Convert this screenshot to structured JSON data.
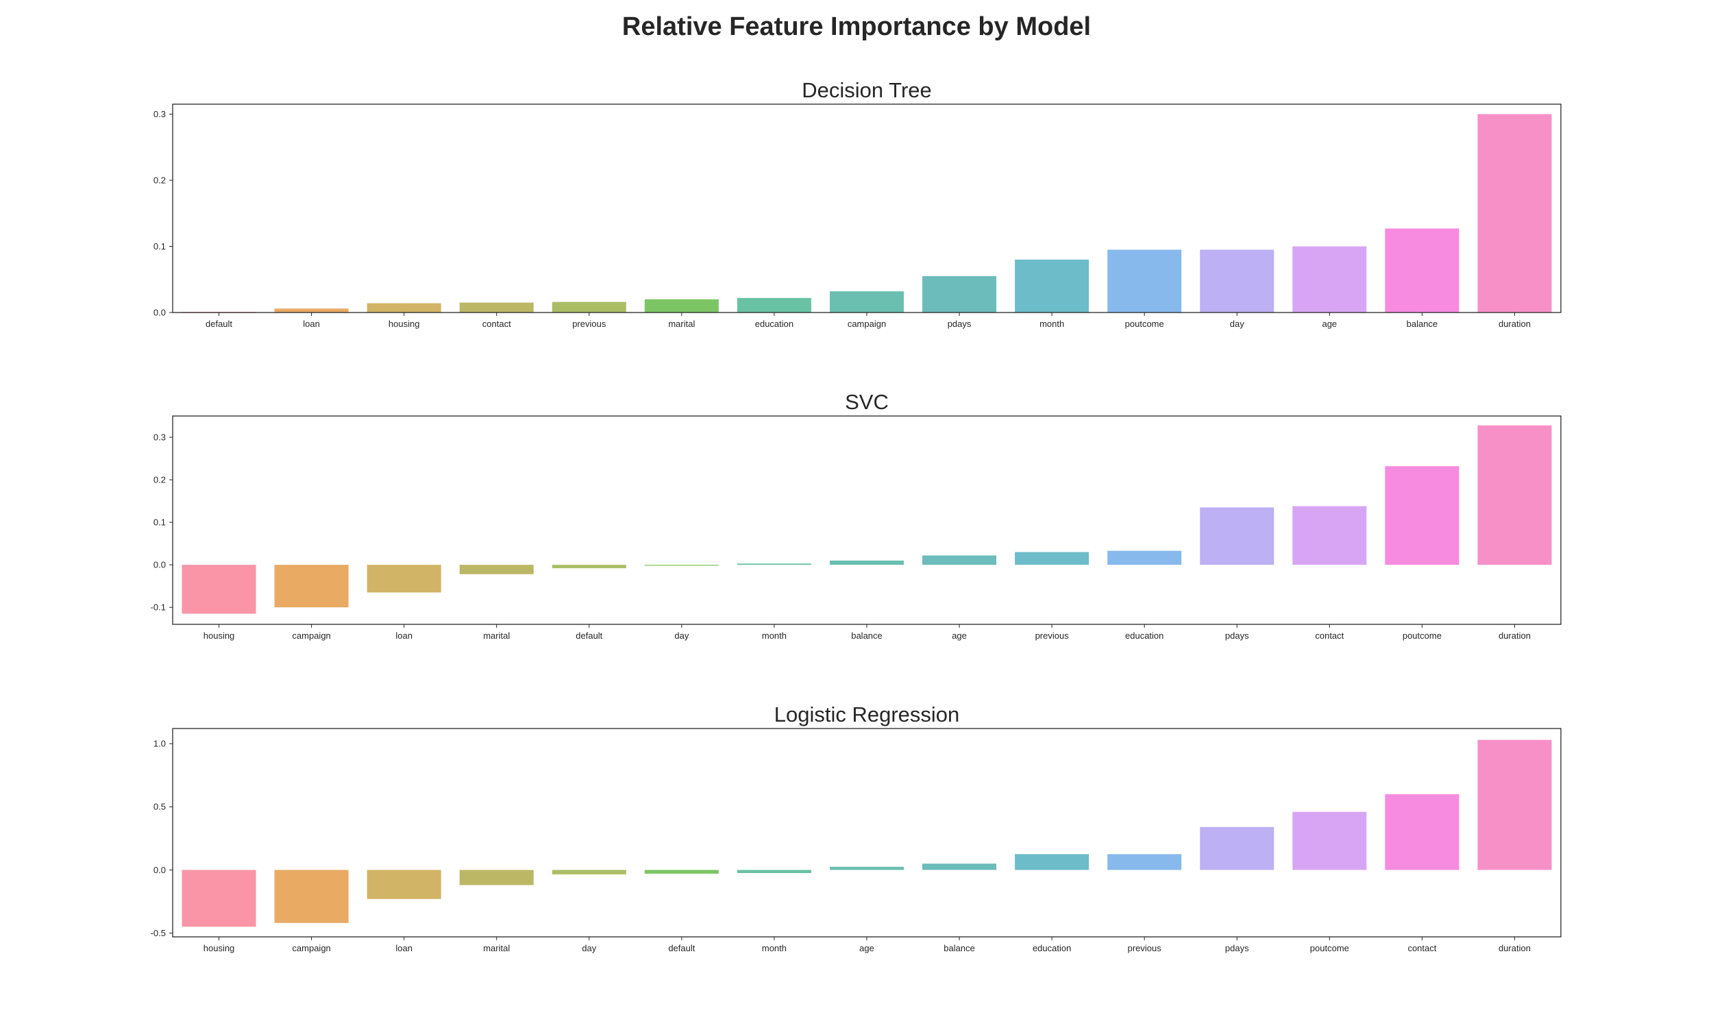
{
  "title": "Relative Feature Importance by Model",
  "chart_data": [
    {
      "type": "bar",
      "title": "Decision Tree",
      "xlabel": "",
      "ylabel": "",
      "ylim": [
        0,
        0.315
      ],
      "yticks": [
        "0.0",
        "0.1",
        "0.2",
        "0.3"
      ],
      "categories": [
        "default",
        "loan",
        "housing",
        "contact",
        "previous",
        "marital",
        "education",
        "campaign",
        "pdays",
        "month",
        "poutcome",
        "day",
        "age",
        "balance",
        "duration"
      ],
      "values": [
        0.001,
        0.006,
        0.014,
        0.015,
        0.016,
        0.02,
        0.022,
        0.032,
        0.055,
        0.08,
        0.095,
        0.095,
        0.1,
        0.127,
        0.3
      ],
      "colors": [
        "#f77189",
        "#e18d30",
        "#c29b31",
        "#a59f31",
        "#8da731",
        "#50b131",
        "#36ae84",
        "#38aa97",
        "#3aa6a4",
        "#3ca6b7",
        "#5fa1e6",
        "#a795f0",
        "#cb87f2",
        "#f464d5",
        "#f56bb6"
      ]
    },
    {
      "type": "bar",
      "title": "SVC",
      "xlabel": "",
      "ylabel": "",
      "ylim": [
        -0.14,
        0.35
      ],
      "yticks": [
        "-0.1",
        "0.0",
        "0.1",
        "0.2",
        "0.3"
      ],
      "categories": [
        "housing",
        "campaign",
        "loan",
        "marital",
        "default",
        "day",
        "month",
        "balance",
        "age",
        "previous",
        "education",
        "pdays",
        "contact",
        "poutcome",
        "duration"
      ],
      "values": [
        -0.115,
        -0.1,
        -0.065,
        -0.022,
        -0.008,
        -0.002,
        0.003,
        0.01,
        0.022,
        0.03,
        0.033,
        0.135,
        0.138,
        0.232,
        0.328
      ],
      "colors": [
        "#f77189",
        "#e18d30",
        "#c29b31",
        "#a59f31",
        "#8da731",
        "#50b131",
        "#36ae84",
        "#38aa97",
        "#3aa6a4",
        "#3ca6b7",
        "#5fa1e6",
        "#a795f0",
        "#cb87f2",
        "#f464d5",
        "#f56bb6"
      ]
    },
    {
      "type": "bar",
      "title": "Logistic Regression",
      "xlabel": "",
      "ylabel": "",
      "ylim": [
        -0.53,
        1.12
      ],
      "yticks": [
        "-0.5",
        "0.0",
        "0.5",
        "1.0"
      ],
      "categories": [
        "housing",
        "campaign",
        "loan",
        "marital",
        "day",
        "default",
        "month",
        "age",
        "balance",
        "education",
        "previous",
        "pdays",
        "poutcome",
        "contact",
        "duration"
      ],
      "values": [
        -0.45,
        -0.42,
        -0.23,
        -0.12,
        -0.035,
        -0.03,
        -0.025,
        0.025,
        0.05,
        0.125,
        0.125,
        0.34,
        0.46,
        0.6,
        1.03
      ],
      "colors": [
        "#f77189",
        "#e18d30",
        "#c29b31",
        "#a59f31",
        "#8da731",
        "#50b131",
        "#36ae84",
        "#38aa97",
        "#3aa6a4",
        "#3ca6b7",
        "#5fa1e6",
        "#a795f0",
        "#cb87f2",
        "#f464d5",
        "#f56bb6"
      ]
    }
  ]
}
